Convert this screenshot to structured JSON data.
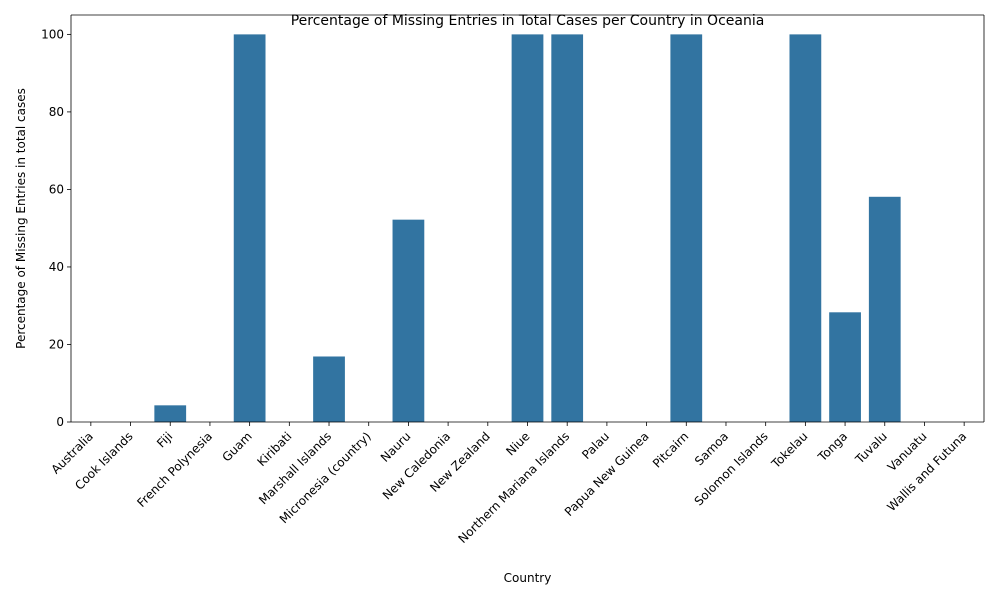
{
  "chart_data": {
    "type": "bar",
    "title": "Percentage of Missing Entries in Total Cases per Country in Oceania",
    "xlabel": "Country",
    "ylabel": "Percentage of Missing Entries in total cases",
    "categories": [
      "Australia",
      "Cook Islands",
      "Fiji",
      "French Polynesia",
      "Guam",
      "Kiribati",
      "Marshall Islands",
      "Micronesia (country)",
      "Nauru",
      "New Caledonia",
      "New Zealand",
      "Niue",
      "Northern Mariana Islands",
      "Palau",
      "Papua New Guinea",
      "Pitcairn",
      "Samoa",
      "Solomon Islands",
      "Tokelau",
      "Tonga",
      "Tuvalu",
      "Vanuatu",
      "Wallis and Futuna"
    ],
    "values": [
      0,
      0,
      4.3,
      0,
      100,
      0,
      16.9,
      0,
      52.2,
      0,
      0,
      100,
      100,
      0,
      0,
      100,
      0,
      0,
      100,
      28.3,
      58.1,
      0,
      0
    ],
    "ylim": [
      0,
      105
    ],
    "yticks": [
      0,
      20,
      40,
      60,
      80,
      100
    ],
    "bar_color": "#3274a1",
    "grid": false
  }
}
